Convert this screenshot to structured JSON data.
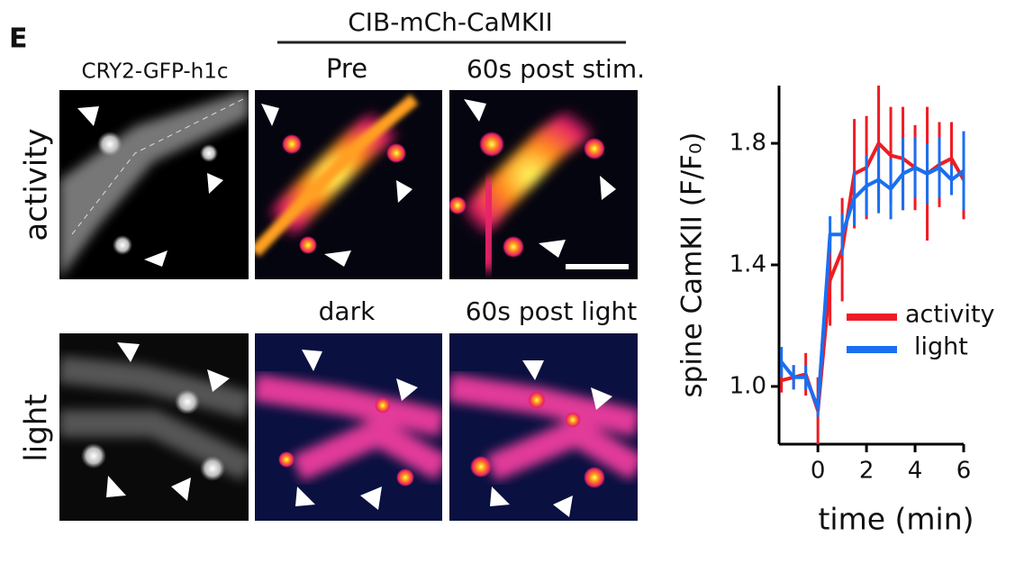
{
  "panel_label": "E",
  "images": {
    "group_title": "CIB-mCh-CaMKII",
    "col1": "CRY2-GFP-h1c",
    "pre": "Pre",
    "post_stim": "60s post stim.",
    "dark": "dark",
    "post_light": "60s post light",
    "row1": "activity",
    "row2": "light"
  },
  "chart_data": {
    "type": "line",
    "ylabel": "spine CamKII (F/F₀)",
    "xlabel": "time (min)",
    "x": [
      -1.5,
      -1,
      -0.5,
      0,
      0.5,
      1,
      1.5,
      2,
      2.5,
      3,
      3.5,
      4,
      4.5,
      5,
      5.5,
      6
    ],
    "series": [
      {
        "name": "activity",
        "color": "#ee1c24",
        "values": [
          1.02,
          1.03,
          1.04,
          0.92,
          1.35,
          1.45,
          1.7,
          1.72,
          1.8,
          1.76,
          1.75,
          1.72,
          1.7,
          1.73,
          1.75,
          1.68
        ],
        "errors": [
          0.04,
          0.04,
          0.07,
          0.11,
          0.15,
          0.17,
          0.18,
          0.17,
          0.19,
          0.16,
          0.17,
          0.14,
          0.22,
          0.14,
          0.12,
          0.13
        ]
      },
      {
        "name": "light",
        "color": "#1a6ff0",
        "values": [
          1.08,
          1.03,
          1.03,
          0.93,
          1.5,
          1.5,
          1.62,
          1.66,
          1.68,
          1.65,
          1.7,
          1.72,
          1.7,
          1.72,
          1.68,
          1.71
        ],
        "errors": [
          0.05,
          0.04,
          0.04,
          0.03,
          0.06,
          0.07,
          0.09,
          0.1,
          0.11,
          0.1,
          0.12,
          0.1,
          0.1,
          0.1,
          0.05,
          0.13
        ]
      }
    ],
    "xlim": [
      -1.6,
      6
    ],
    "ylim": [
      0.81,
      1.99
    ],
    "xticks": [
      0,
      2,
      4,
      6
    ],
    "yticks": [
      {
        "value": 1,
        "label": "1.0"
      },
      1.4,
      1.8
    ]
  }
}
